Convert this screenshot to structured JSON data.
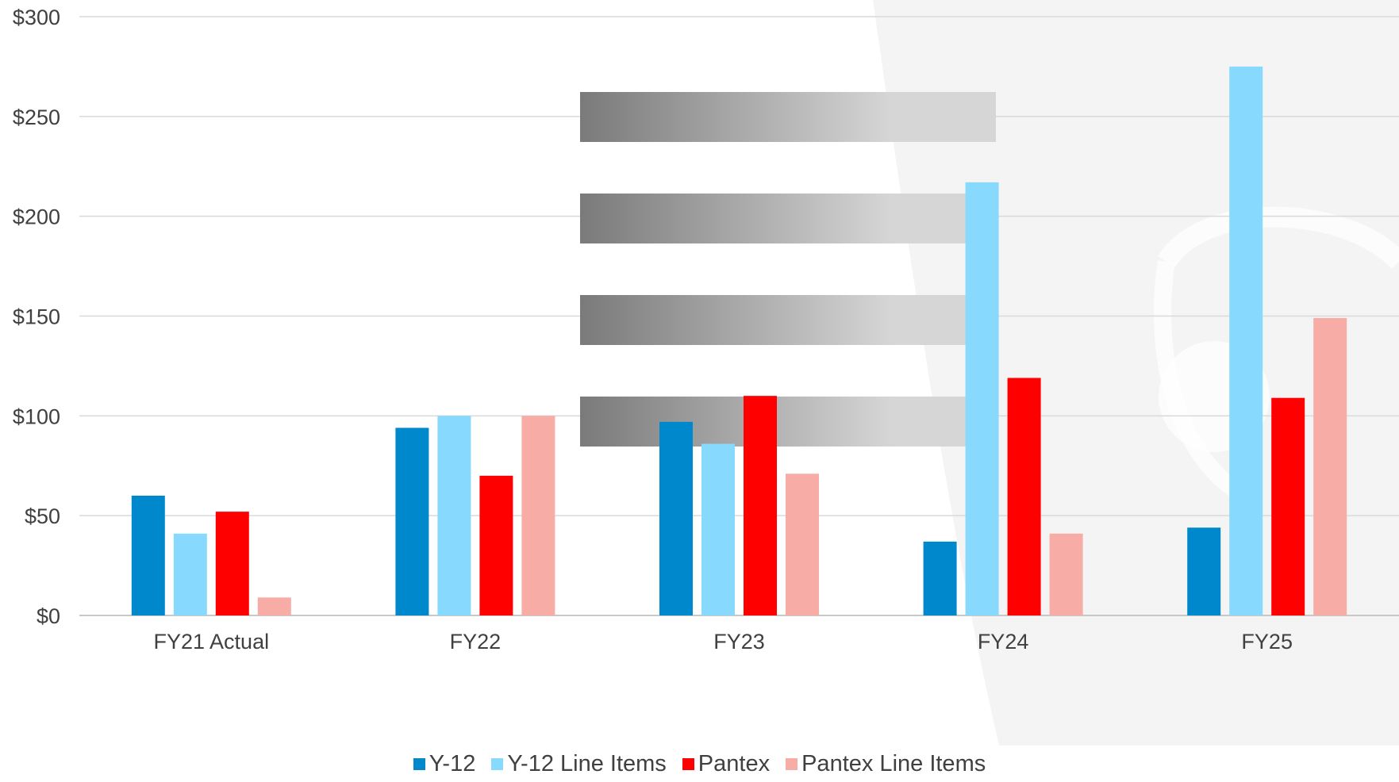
{
  "chart_data": {
    "type": "bar",
    "categories": [
      "FY21 Actual",
      "FY22",
      "FY23",
      "FY24",
      "FY25"
    ],
    "series": [
      {
        "name": "Y-12",
        "color": "#0088CC",
        "values": [
          60,
          94,
          97,
          37,
          44
        ]
      },
      {
        "name": "Y-12 Line Items",
        "color": "#87D9FE",
        "values": [
          41,
          100,
          86,
          217,
          275
        ]
      },
      {
        "name": "Pantex",
        "color": "#FF0000",
        "values": [
          52,
          70,
          110,
          119,
          109
        ]
      },
      {
        "name": "Pantex Line Items",
        "color": "#F7ACA6",
        "values": [
          9,
          100,
          71,
          41,
          149
        ]
      }
    ],
    "ylim": [
      0,
      300
    ],
    "yticks": [
      0,
      50,
      100,
      150,
      200,
      250,
      300
    ],
    "ytick_labels": [
      "$0",
      "$50",
      "$100",
      "$150",
      "$200",
      "$250",
      "$300"
    ],
    "grid": true,
    "legend_position": "bottom-center",
    "title": "",
    "xlabel": "",
    "ylabel": ""
  }
}
